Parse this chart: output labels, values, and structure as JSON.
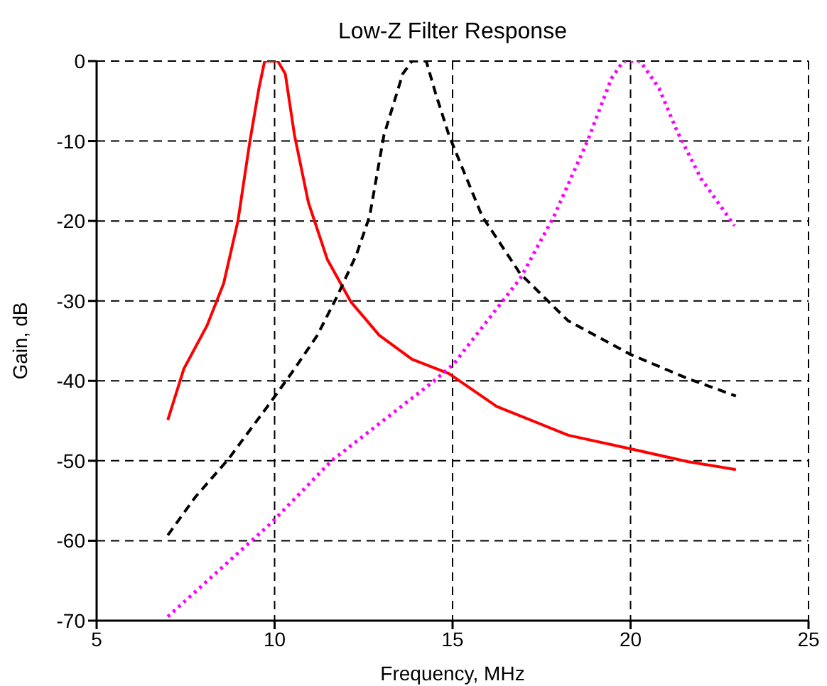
{
  "chart_data": {
    "type": "line",
    "title": "Low-Z Filter Response",
    "xlabel": "Frequency, MHz",
    "ylabel": "Gain, dB",
    "xlim": [
      5,
      25
    ],
    "xticks": [
      5,
      10,
      15,
      20,
      25
    ],
    "ylim": [
      -70,
      0
    ],
    "yticks": [
      -70,
      -60,
      -50,
      -40,
      -30,
      -20,
      -10,
      0
    ],
    "grid": true,
    "marker": "none",
    "legend": false,
    "series": [
      {
        "color": "#ff0000",
        "line_style": "solid",
        "x": [
          7,
          7.45,
          8.1,
          8.57,
          8.97,
          9.3,
          9.56,
          9.72,
          10.09,
          10.3,
          10.56,
          10.95,
          11.48,
          12.14,
          12.94,
          13.86,
          14.9,
          16.24,
          18.25,
          20,
          21.6,
          22.96
        ],
        "values": [
          -44.9,
          -38.5,
          -33.1,
          -27.8,
          -20,
          -10.2,
          -3.4,
          0,
          0,
          -1.6,
          -9.3,
          -17.7,
          -24.8,
          -30.1,
          -34.3,
          -37.3,
          -39.1,
          -43.2,
          -46.8,
          -48.5,
          -50.1,
          -51.1
        ]
      },
      {
        "color": "#000000",
        "line_style": "dashed",
        "x": [
          7,
          7.78,
          8.7,
          9.9,
          10.56,
          11.2,
          11.75,
          12.3,
          12.67,
          13.07,
          13.6,
          13.86,
          14.26,
          14.52,
          14.9,
          15.83,
          16.9,
          18.25,
          20,
          21.6,
          22.96
        ],
        "values": [
          -59.3,
          -54.5,
          -49.8,
          -42.6,
          -38.5,
          -34.3,
          -29.5,
          -24.2,
          -19.4,
          -9.3,
          -1.6,
          0,
          0,
          -4,
          -9.3,
          -19.4,
          -26.6,
          -32.5,
          -36.7,
          -39.7,
          -41.9
        ]
      },
      {
        "color": "#ff00ff",
        "line_style": "dotted",
        "x": [
          7,
          9.9,
          11.6,
          14.4,
          15.03,
          16.9,
          17.85,
          18.8,
          19.46,
          19.8,
          20.27,
          20.8,
          21.3,
          21.98,
          22.92
        ],
        "values": [
          -69.5,
          -57.8,
          -50,
          -40.3,
          -37.9,
          -27.2,
          -19.4,
          -9.9,
          -2.2,
          0,
          0,
          -3.4,
          -8.7,
          -14.7,
          -20.6
        ]
      }
    ]
  }
}
